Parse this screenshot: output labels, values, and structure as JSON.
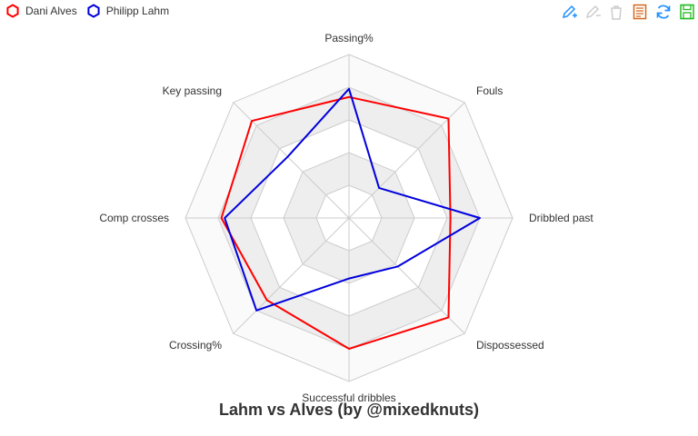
{
  "chart_data": {
    "type": "radar",
    "title": "Lahm vs Alves (by @mixedknuts)",
    "legend_position": "top-left",
    "indicators": [
      "Passing%",
      "Fouls",
      "Dribbled past",
      "Dispossessed",
      "Successful dribbles",
      "Crossing%",
      "Comp crosses",
      "Key passing"
    ],
    "max": 1,
    "split_number": 5,
    "series": [
      {
        "name": "Dani Alves",
        "color": "#ff0000",
        "values": [
          0.74,
          0.86,
          0.62,
          0.86,
          0.8,
          0.71,
          0.78,
          0.84
        ]
      },
      {
        "name": "Philipp Lahm",
        "color": "#0000dd",
        "values": [
          0.79,
          0.26,
          0.8,
          0.42,
          0.37,
          0.8,
          0.76,
          0.53
        ]
      }
    ]
  },
  "legend": {
    "items": [
      {
        "label": "Dani Alves",
        "color": "#ff0000"
      },
      {
        "label": "Philipp Lahm",
        "color": "#0000dd"
      }
    ]
  },
  "toolbox": {
    "icons": [
      "mark-icon",
      "mark-undo-icon",
      "mark-clear-icon",
      "data-view-icon",
      "restore-icon",
      "save-image-icon"
    ],
    "colors": {
      "mark": "#1e90ff",
      "disabled": "#cccccc",
      "dataview": "#d2691e",
      "restore": "#1e90ff",
      "save": "#22bb22"
    }
  }
}
